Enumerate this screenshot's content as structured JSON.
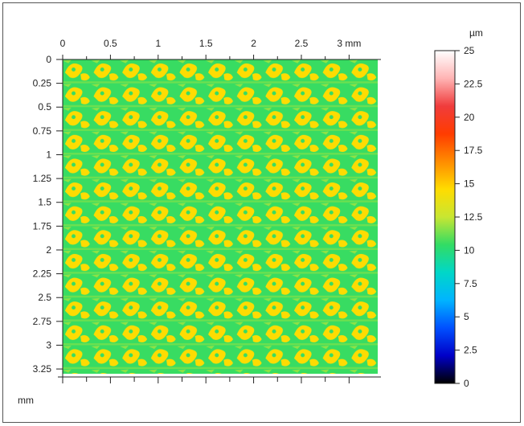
{
  "chart_data": {
    "type": "heatmap",
    "title": "",
    "description_values": "3D surface height map of a periodic textured surface; mostly 10-15 µm",
    "x_axis": {
      "unit_label": "mm",
      "ticks": [
        "0",
        "0.5",
        "1",
        "1.5",
        "2",
        "2.5",
        "3"
      ],
      "tick_values": [
        0,
        0.5,
        1,
        1.5,
        2,
        2.5,
        3
      ],
      "range": [
        0,
        3.3
      ],
      "position": "top"
    },
    "y_axis": {
      "unit_label": "mm",
      "ticks": [
        "0",
        "0.25",
        "0.5",
        "0.75",
        "1",
        "1.25",
        "1.5",
        "1.75",
        "2",
        "2.25",
        "2.5",
        "2.75",
        "3",
        "3.25"
      ],
      "tick_values": [
        0,
        0.25,
        0.5,
        0.75,
        1,
        1.25,
        1.5,
        1.75,
        2,
        2.25,
        2.5,
        2.75,
        3,
        3.25
      ],
      "range": [
        0,
        3.3
      ],
      "direction": "downward"
    },
    "colorbar": {
      "unit_label": "µm",
      "ticks": [
        "0",
        "2.5",
        "5",
        "7.5",
        "10",
        "12.5",
        "15",
        "17.5",
        "20",
        "22.5",
        "25"
      ],
      "tick_values": [
        0,
        2.5,
        5,
        7.5,
        10,
        12.5,
        15,
        17.5,
        20,
        22.5,
        25
      ],
      "range": [
        0,
        25
      ],
      "colors": [
        "#000000",
        "#0000c8",
        "#0050ff",
        "#00b4ff",
        "#00d7c8",
        "#32dc64",
        "#c8e632",
        "#ffdc00",
        "#ff8c00",
        "#ff3c00",
        "#f03c3c",
        "#ffb4b4",
        "#ffffff"
      ]
    },
    "surface": {
      "pattern": "periodic",
      "period_x_mm": 0.3,
      "period_y_mm": 0.25,
      "base_height_um": 10.5,
      "feature_height_um": 14.5,
      "grid": false
    }
  }
}
